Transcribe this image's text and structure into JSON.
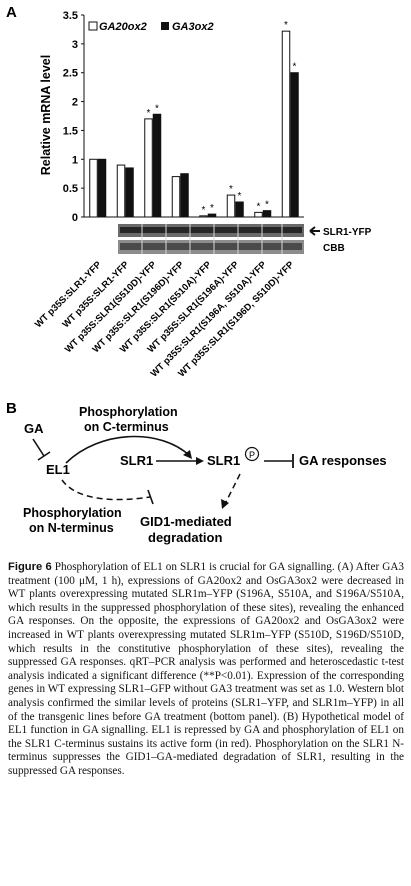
{
  "panel_a": {
    "letter": "A",
    "legend": {
      "white": "GA20ox2",
      "black": "GA3ox2"
    },
    "western_labels": {
      "top": "SLR1-YFP",
      "bottom": "CBB"
    }
  },
  "panel_b": {
    "letter": "B",
    "labels": {
      "ga": "GA",
      "el1": "EL1",
      "phos_c_1": "Phosphorylation",
      "phos_c_2": "on C-terminus",
      "slr1": "SLR1",
      "slr1p": "SLR1",
      "p_circle": "P",
      "ga_responses": "GA responses",
      "phos_n_1": "Phosphorylation",
      "phos_n_2": "on N-terminus",
      "gid1_1": "GID1-mediated",
      "gid1_2": "degradation"
    }
  },
  "caption": {
    "label": "Figure 6",
    "text": "Phosphorylation of EL1 on SLR1 is crucial for GA signalling. (A) After GA3 treatment (100 μM, 1 h), expressions of GA20ox2 and OsGA3ox2 were decreased in WT plants overexpressing mutated SLR1m–YFP (S196A, S510A, and S196A/S510A, which results in the suppressed phosphorylation of these sites), revealing the enhanced GA responses. On the opposite, the expressions of GA20ox2 and OsGA3ox2 were increased in WT plants overexpressing mutated SLR1m–YFP (S510D, S196D/S510D, which results in the constitutive phosphorylation of these sites), revealing the suppressed GA responses. qRT–PCR analysis was performed and heteroscedastic t-test analysis indicated a significant difference (**P<0.01). Expression of the corresponding genes in WT expressing SLR1–GFP without GA3 treatment was set as 1.0. Western blot analysis confirmed the similar levels of proteins (SLR1–YFP, and SLR1m–YFP) in all of the transgenic lines before GA treatment (bottom panel). (B) Hypothetical model of EL1 function in GA signalling. EL1 is repressed by GA and phosphorylation of EL1 on the SLR1 C-terminus sustains its active form (in red). Phosphorylation on the SLR1 N-terminus suppresses the GID1–GA-mediated degradation of SLR1, resulting in the suppressed GA responses."
  },
  "chart_data": {
    "type": "bar",
    "ylabel": "Relative mRNA level",
    "ylim": [
      0,
      3.5
    ],
    "yticks": [
      "0",
      "0.5",
      "1",
      "1.5",
      "2",
      "2.5",
      "3",
      "3.5"
    ],
    "categories": [
      "WT p35S:SLR1-YFP",
      "WT p35S:SLR1-YFP",
      "WT p35S:SLR1(S510D)-YFP",
      "WT p35S:SLR1(S196D)-YFP",
      "WT p35S:SLR1(S510A)-YFP",
      "WT p35S:SLR1(S196A)-YFP",
      "WT p35S:SLR1(S196A, S510A)-YFP",
      "WT p35S:SLR1(S196D, S510D)-YFP"
    ],
    "series": [
      {
        "name": "GA20ox2",
        "color": "#ffffff",
        "values": [
          1.0,
          0.9,
          1.7,
          0.7,
          0.02,
          0.38,
          0.08,
          3.22
        ]
      },
      {
        "name": "GA3ox2",
        "color": "#111111",
        "values": [
          1.0,
          0.85,
          1.78,
          0.75,
          0.05,
          0.26,
          0.11,
          2.5
        ]
      }
    ],
    "significance": [
      [
        false,
        false,
        true,
        false,
        true,
        true,
        true,
        true
      ],
      [
        false,
        false,
        true,
        false,
        true,
        true,
        true,
        true
      ]
    ],
    "significance_mark": "*"
  }
}
